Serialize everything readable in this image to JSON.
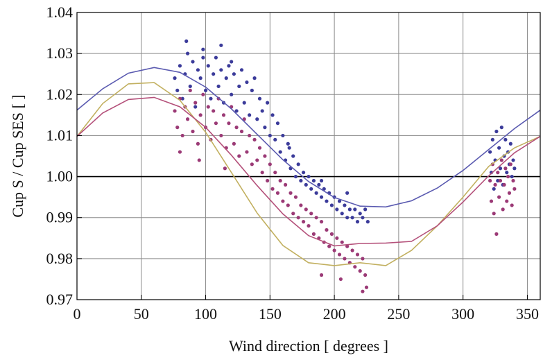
{
  "chart_data": {
    "type": "scatter",
    "title": "",
    "xlabel": "Wind direction [ degrees ]",
    "ylabel": "Cup S / Cup SES [ ]",
    "xlim": [
      0,
      360
    ],
    "ylim": [
      0.97,
      1.04
    ],
    "x_ticks": [
      0,
      50,
      100,
      150,
      200,
      250,
      300,
      350
    ],
    "x_tick_labels": [
      "0",
      "50",
      "100",
      "150",
      "200",
      "250",
      "300",
      "350"
    ],
    "y_ticks": [
      0.97,
      0.98,
      0.99,
      1.0,
      1.01,
      1.02,
      1.03,
      1.04
    ],
    "y_tick_labels": [
      "0.97",
      "0.98",
      "0.99",
      "1.00",
      "1.01",
      "1.02",
      "1.03",
      "1.04"
    ],
    "grid": true,
    "reference_line": 1.0,
    "scatter_series": [
      {
        "color": "#3b3b9a",
        "points": [
          [
            76,
            1.024
          ],
          [
            78,
            1.021
          ],
          [
            80,
            1.027
          ],
          [
            82,
            1.019
          ],
          [
            84,
            1.025
          ],
          [
            86,
            1.03
          ],
          [
            88,
            1.022
          ],
          [
            90,
            1.028
          ],
          [
            92,
            1.017
          ],
          [
            94,
            1.026
          ],
          [
            96,
            1.024
          ],
          [
            98,
            1.031
          ],
          [
            100,
            1.021
          ],
          [
            102,
            1.027
          ],
          [
            104,
            1.019
          ],
          [
            106,
            1.025
          ],
          [
            108,
            1.029
          ],
          [
            110,
            1.022
          ],
          [
            112,
            1.026
          ],
          [
            114,
            1.018
          ],
          [
            116,
            1.024
          ],
          [
            118,
            1.027
          ],
          [
            120,
            1.02
          ],
          [
            122,
            1.025
          ],
          [
            124,
            1.016
          ],
          [
            126,
            1.022
          ],
          [
            128,
            1.026
          ],
          [
            130,
            1.018
          ],
          [
            132,
            1.023
          ],
          [
            134,
            1.015
          ],
          [
            136,
            1.021
          ],
          [
            138,
            1.024
          ],
          [
            140,
            1.014
          ],
          [
            142,
            1.019
          ],
          [
            144,
            1.016
          ],
          [
            146,
            1.012
          ],
          [
            148,
            1.018
          ],
          [
            150,
            1.01
          ],
          [
            152,
            1.015
          ],
          [
            154,
            1.009
          ],
          [
            156,
            1.013
          ],
          [
            158,
            1.006
          ],
          [
            160,
            1.01
          ],
          [
            162,
            1.004
          ],
          [
            164,
            1.008
          ],
          [
            166,
            1.002
          ],
          [
            168,
            1.005
          ],
          [
            170,
            1.0
          ],
          [
            172,
            1.003
          ],
          [
            174,
            0.999
          ],
          [
            176,
            1.001
          ],
          [
            178,
            0.998
          ],
          [
            180,
            1.0
          ],
          [
            182,
            0.997
          ],
          [
            184,
            0.999
          ],
          [
            186,
            0.996
          ],
          [
            188,
            0.998
          ],
          [
            190,
            0.995
          ],
          [
            192,
            0.997
          ],
          [
            194,
            0.994
          ],
          [
            196,
            0.996
          ],
          [
            198,
            0.993
          ],
          [
            200,
            0.995
          ],
          [
            202,
            0.992
          ],
          [
            204,
            0.994
          ],
          [
            206,
            0.991
          ],
          [
            208,
            0.993
          ],
          [
            210,
            0.99
          ],
          [
            212,
            0.992
          ],
          [
            214,
            0.99
          ],
          [
            216,
            0.992
          ],
          [
            218,
            0.989
          ],
          [
            220,
            0.991
          ],
          [
            222,
            0.99
          ],
          [
            224,
            0.992
          ],
          [
            226,
            0.989
          ],
          [
            85,
            1.033
          ],
          [
            98,
            1.029
          ],
          [
            112,
            1.032
          ],
          [
            120,
            1.028
          ],
          [
            165,
            1.007
          ],
          [
            190,
            0.999
          ],
          [
            210,
            0.996
          ],
          [
            321,
            1.006
          ],
          [
            322,
            1.001
          ],
          [
            323,
            1.009
          ],
          [
            324,
            0.997
          ],
          [
            325,
            1.004
          ],
          [
            326,
            1.011
          ],
          [
            327,
            0.999
          ],
          [
            328,
            1.007
          ],
          [
            329,
            1.002
          ],
          [
            330,
            1.012
          ],
          [
            331,
            0.998
          ],
          [
            332,
            1.005
          ],
          [
            333,
            1.009
          ],
          [
            334,
            1.001
          ],
          [
            335,
            1.006
          ],
          [
            336,
            1.003
          ],
          [
            337,
            1.008
          ],
          [
            338,
            1.0
          ],
          [
            339,
            1.004
          ],
          [
            340,
            1.002
          ]
        ]
      },
      {
        "color": "#9b3a76",
        "points": [
          [
            76,
            1.016
          ],
          [
            78,
            1.012
          ],
          [
            80,
            1.019
          ],
          [
            82,
            1.01
          ],
          [
            84,
            1.017
          ],
          [
            86,
            1.014
          ],
          [
            88,
            1.021
          ],
          [
            90,
            1.011
          ],
          [
            92,
            1.018
          ],
          [
            94,
            1.008
          ],
          [
            96,
            1.015
          ],
          [
            98,
            1.02
          ],
          [
            100,
            1.012
          ],
          [
            102,
            1.017
          ],
          [
            104,
            1.009
          ],
          [
            106,
            1.016
          ],
          [
            108,
            1.013
          ],
          [
            110,
            1.019
          ],
          [
            112,
            1.01
          ],
          [
            114,
            1.015
          ],
          [
            116,
            1.007
          ],
          [
            118,
            1.013
          ],
          [
            120,
            1.017
          ],
          [
            122,
            1.008
          ],
          [
            124,
            1.012
          ],
          [
            126,
            1.005
          ],
          [
            128,
            1.011
          ],
          [
            130,
            1.014
          ],
          [
            132,
            1.006
          ],
          [
            134,
            1.01
          ],
          [
            136,
            1.003
          ],
          [
            138,
            1.009
          ],
          [
            140,
            1.004
          ],
          [
            142,
            1.007
          ],
          [
            144,
            1.001
          ],
          [
            146,
            1.005
          ],
          [
            148,
            0.999
          ],
          [
            150,
            1.003
          ],
          [
            152,
            0.997
          ],
          [
            154,
            1.001
          ],
          [
            156,
            0.996
          ],
          [
            158,
            0.999
          ],
          [
            160,
            0.994
          ],
          [
            162,
            0.998
          ],
          [
            164,
            0.993
          ],
          [
            166,
            0.996
          ],
          [
            168,
            0.991
          ],
          [
            170,
            0.995
          ],
          [
            172,
            0.99
          ],
          [
            174,
            0.993
          ],
          [
            176,
            0.989
          ],
          [
            178,
            0.992
          ],
          [
            180,
            0.988
          ],
          [
            182,
            0.991
          ],
          [
            184,
            0.986
          ],
          [
            186,
            0.99
          ],
          [
            188,
            0.985
          ],
          [
            190,
            0.989
          ],
          [
            192,
            0.984
          ],
          [
            194,
            0.987
          ],
          [
            196,
            0.983
          ],
          [
            198,
            0.986
          ],
          [
            200,
            0.982
          ],
          [
            202,
            0.985
          ],
          [
            204,
            0.981
          ],
          [
            206,
            0.984
          ],
          [
            208,
            0.98
          ],
          [
            210,
            0.983
          ],
          [
            212,
            0.979
          ],
          [
            214,
            0.982
          ],
          [
            216,
            0.978
          ],
          [
            218,
            0.981
          ],
          [
            220,
            0.977
          ],
          [
            222,
            0.98
          ],
          [
            224,
            0.976
          ],
          [
            225,
            0.973
          ],
          [
            80,
            1.006
          ],
          [
            95,
            1.004
          ],
          [
            115,
            1.002
          ],
          [
            190,
            0.976
          ],
          [
            205,
            0.975
          ],
          [
            222,
            0.972
          ],
          [
            321,
            0.999
          ],
          [
            322,
            0.994
          ],
          [
            323,
            1.003
          ],
          [
            324,
            0.991
          ],
          [
            325,
            0.998
          ],
          [
            326,
            0.986
          ],
          [
            327,
            1.001
          ],
          [
            328,
            0.995
          ],
          [
            329,
            0.999
          ],
          [
            330,
            1.004
          ],
          [
            331,
            0.992
          ],
          [
            332,
            0.998
          ],
          [
            333,
            1.002
          ],
          [
            334,
            0.994
          ],
          [
            335,
            1.0
          ],
          [
            336,
            0.996
          ],
          [
            337,
            1.003
          ],
          [
            338,
            0.993
          ],
          [
            339,
            0.999
          ],
          [
            340,
            0.997
          ]
        ]
      }
    ],
    "curves": [
      {
        "color": "#5a5ab0",
        "x": [
          0,
          20,
          40,
          60,
          80,
          100,
          120,
          140,
          160,
          180,
          200,
          220,
          240,
          260,
          280,
          300,
          320,
          340,
          360
        ],
        "values": [
          1.0162,
          1.0214,
          1.0252,
          1.0266,
          1.0254,
          1.0218,
          1.0165,
          1.0103,
          1.0041,
          0.9988,
          0.9949,
          0.9928,
          0.9926,
          0.9941,
          0.9972,
          1.0015,
          1.0066,
          1.0117,
          1.0162
        ]
      },
      {
        "color": "#c2b060",
        "x": [
          0,
          20,
          40,
          60,
          80,
          100,
          120,
          140,
          160,
          180,
          200,
          220,
          240,
          260,
          280,
          300,
          320,
          340,
          360
        ],
        "values": [
          1.0098,
          1.0178,
          1.0226,
          1.0229,
          1.0186,
          1.0108,
          1.001,
          0.9911,
          0.9832,
          0.979,
          0.9783,
          0.979,
          0.9783,
          0.982,
          0.988,
          0.995,
          1.0025,
          1.007,
          1.0098
        ]
      },
      {
        "color": "#b4507a",
        "x": [
          0,
          20,
          40,
          60,
          80,
          100,
          120,
          140,
          160,
          180,
          200,
          220,
          240,
          260,
          280,
          300,
          320,
          340,
          360
        ],
        "values": [
          1.0098,
          1.0155,
          1.0188,
          1.0193,
          1.017,
          1.012,
          1.0052,
          0.9978,
          0.9909,
          0.9856,
          0.9831,
          0.9837,
          0.9838,
          0.9842,
          0.988,
          0.9938,
          1.0002,
          1.0058,
          1.0098
        ]
      }
    ]
  }
}
